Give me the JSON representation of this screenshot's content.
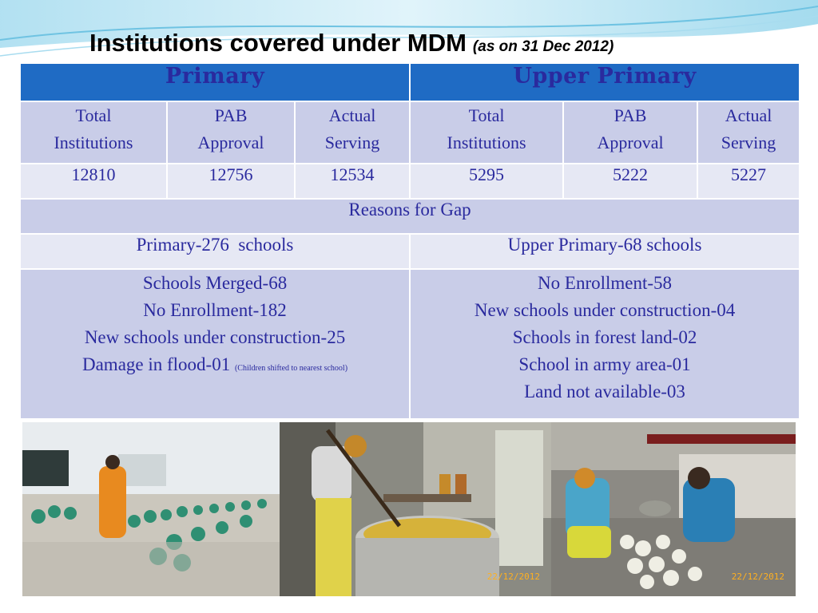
{
  "title": {
    "main": "Institutions covered under MDM",
    "sub": "(as on 31 Dec 2012)"
  },
  "table": {
    "groups": [
      "Primary",
      "Upper Primary"
    ],
    "column_headers": [
      [
        "Total",
        "Institutions"
      ],
      [
        "PAB",
        "Approval"
      ],
      [
        "Actual",
        "Serving"
      ],
      [
        "Total",
        "Institutions"
      ],
      [
        "PAB",
        "Approval"
      ],
      [
        "Actual",
        "Serving"
      ]
    ],
    "values": [
      "12810",
      "12756",
      "12534",
      "5295",
      "5222",
      "5227"
    ],
    "reasons_label": "Reasons for Gap",
    "gap": {
      "primary": "Primary-276  schools",
      "upper_primary": "Upper Primary-68 schools"
    },
    "primary_reasons": [
      "Schools Merged-68",
      "No Enrollment-182",
      "New schools under construction-25",
      "Damage in flood-01"
    ],
    "primary_note": "(Children shifted to nearest school)",
    "upper_primary_reasons": [
      "No Enrollment-58",
      "New schools under construction-04",
      "Schools in forest land-02",
      "School in army area-01",
      "Land not available-03"
    ]
  },
  "photos": {
    "date_stamp_2": "22/12/2012",
    "date_stamp_3": "22/12/2012"
  },
  "colors": {
    "header_blue": "#1f6bc4",
    "cell_lavender": "#c9cde8",
    "cell_light": "#e6e8f4",
    "text_blue": "#2a2a9e"
  }
}
